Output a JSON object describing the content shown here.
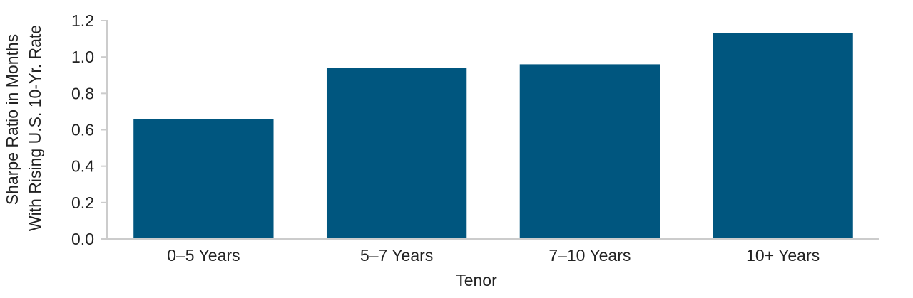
{
  "chart_data": {
    "type": "bar",
    "categories": [
      "0–5 Years",
      "5–7 Years",
      "7–10 Years",
      "10+ Years"
    ],
    "series": [
      {
        "values": [
          0.66,
          0.94,
          0.96,
          1.13
        ]
      }
    ],
    "title": "",
    "xlabel": "Tenor",
    "ylabel_lines": [
      "Sharpe Ratio in Months",
      "With Rising U.S. 10-Yr. Rate"
    ],
    "ylim": [
      0,
      1.2
    ],
    "yticks": [
      "0.0",
      "0.2",
      "0.4",
      "0.6",
      "0.8",
      "1.0",
      "1.2"
    ],
    "grid": false,
    "legend": "none",
    "colors": {
      "bar": "#00567f",
      "axis": "#cccccc",
      "text": "#222222"
    }
  }
}
